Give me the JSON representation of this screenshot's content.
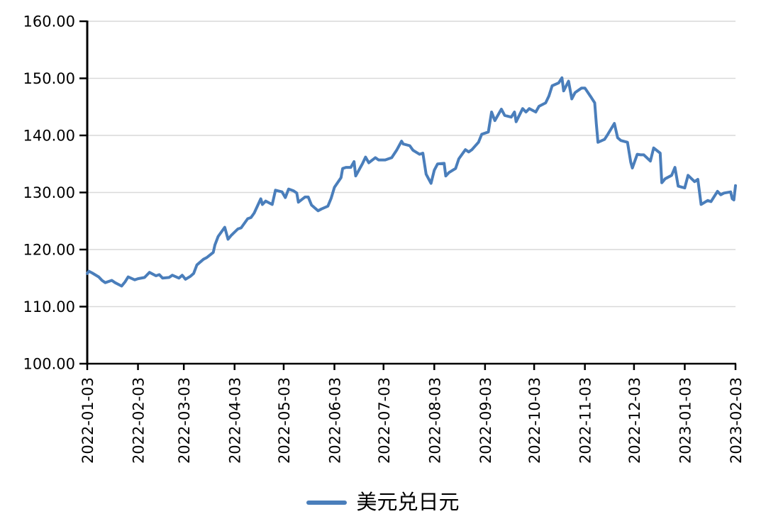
{
  "chart_data": {
    "type": "line",
    "title": "",
    "xlabel": "",
    "ylabel": "",
    "ylim": [
      100,
      160
    ],
    "y_ticks": [
      100,
      110,
      120,
      130,
      140,
      150,
      160
    ],
    "y_tick_format": "2-decimals",
    "x_ticks": [
      "2022-01-03",
      "2022-02-03",
      "2022-03-03",
      "2022-04-03",
      "2022-05-03",
      "2022-06-03",
      "2022-07-03",
      "2022-08-03",
      "2022-09-03",
      "2022-10-03",
      "2022-11-03",
      "2022-12-03",
      "2023-01-03",
      "2023-02-03"
    ],
    "x_tick_rotation": 90,
    "grid": "horizontal",
    "legend_position": "bottom",
    "colors": {
      "line": "#4A7EBB",
      "grid": "#D9D9D9",
      "axis": "#000000",
      "text": "#000000",
      "background": "#FFFFFF"
    },
    "series": [
      {
        "name": "美元兑日元",
        "color": "#4A7EBB",
        "points": [
          [
            "2022-01-03",
            115.8
          ],
          [
            "2022-01-04",
            116.2
          ],
          [
            "2022-01-06",
            115.9
          ],
          [
            "2022-01-10",
            115.2
          ],
          [
            "2022-01-12",
            114.6
          ],
          [
            "2022-01-14",
            114.2
          ],
          [
            "2022-01-18",
            114.6
          ],
          [
            "2022-01-20",
            114.2
          ],
          [
            "2022-01-24",
            113.6
          ],
          [
            "2022-01-26",
            114.3
          ],
          [
            "2022-01-28",
            115.2
          ],
          [
            "2022-02-01",
            114.7
          ],
          [
            "2022-02-03",
            114.9
          ],
          [
            "2022-02-07",
            115.1
          ],
          [
            "2022-02-10",
            116.0
          ],
          [
            "2022-02-14",
            115.4
          ],
          [
            "2022-02-16",
            115.6
          ],
          [
            "2022-02-18",
            115.0
          ],
          [
            "2022-02-22",
            115.1
          ],
          [
            "2022-02-24",
            115.5
          ],
          [
            "2022-02-28",
            115.0
          ],
          [
            "2022-03-02",
            115.5
          ],
          [
            "2022-03-04",
            114.8
          ],
          [
            "2022-03-07",
            115.3
          ],
          [
            "2022-03-09",
            115.8
          ],
          [
            "2022-03-11",
            117.3
          ],
          [
            "2022-03-15",
            118.3
          ],
          [
            "2022-03-17",
            118.6
          ],
          [
            "2022-03-21",
            119.5
          ],
          [
            "2022-03-22",
            120.8
          ],
          [
            "2022-03-24",
            122.3
          ],
          [
            "2022-03-28",
            123.9
          ],
          [
            "2022-03-30",
            121.8
          ],
          [
            "2022-04-01",
            122.5
          ],
          [
            "2022-04-05",
            123.6
          ],
          [
            "2022-04-07",
            123.8
          ],
          [
            "2022-04-11",
            125.4
          ],
          [
            "2022-04-13",
            125.6
          ],
          [
            "2022-04-15",
            126.4
          ],
          [
            "2022-04-19",
            128.9
          ],
          [
            "2022-04-20",
            127.9
          ],
          [
            "2022-04-22",
            128.5
          ],
          [
            "2022-04-26",
            127.9
          ],
          [
            "2022-04-28",
            130.4
          ],
          [
            "2022-05-02",
            130.1
          ],
          [
            "2022-05-04",
            129.1
          ],
          [
            "2022-05-06",
            130.6
          ],
          [
            "2022-05-09",
            130.3
          ],
          [
            "2022-05-11",
            129.9
          ],
          [
            "2022-05-12",
            128.3
          ],
          [
            "2022-05-16",
            129.2
          ],
          [
            "2022-05-18",
            129.2
          ],
          [
            "2022-05-20",
            127.8
          ],
          [
            "2022-05-24",
            126.8
          ],
          [
            "2022-05-26",
            127.1
          ],
          [
            "2022-05-30",
            127.6
          ],
          [
            "2022-06-01",
            129.0
          ],
          [
            "2022-06-03",
            130.9
          ],
          [
            "2022-06-07",
            132.6
          ],
          [
            "2022-06-08",
            134.2
          ],
          [
            "2022-06-10",
            134.4
          ],
          [
            "2022-06-13",
            134.4
          ],
          [
            "2022-06-15",
            135.4
          ],
          [
            "2022-06-16",
            132.9
          ],
          [
            "2022-06-20",
            135.0
          ],
          [
            "2022-06-22",
            136.2
          ],
          [
            "2022-06-24",
            135.2
          ],
          [
            "2022-06-28",
            136.1
          ],
          [
            "2022-06-30",
            135.7
          ],
          [
            "2022-07-04",
            135.7
          ],
          [
            "2022-07-06",
            135.9
          ],
          [
            "2022-07-08",
            136.1
          ],
          [
            "2022-07-11",
            137.4
          ],
          [
            "2022-07-14",
            139.0
          ],
          [
            "2022-07-15",
            138.5
          ],
          [
            "2022-07-19",
            138.2
          ],
          [
            "2022-07-21",
            137.4
          ],
          [
            "2022-07-25",
            136.7
          ],
          [
            "2022-07-27",
            136.9
          ],
          [
            "2022-07-29",
            133.2
          ],
          [
            "2022-08-01",
            131.6
          ],
          [
            "2022-08-03",
            133.9
          ],
          [
            "2022-08-05",
            135.0
          ],
          [
            "2022-08-09",
            135.1
          ],
          [
            "2022-08-10",
            132.9
          ],
          [
            "2022-08-12",
            133.5
          ],
          [
            "2022-08-16",
            134.2
          ],
          [
            "2022-08-18",
            135.9
          ],
          [
            "2022-08-22",
            137.5
          ],
          [
            "2022-08-24",
            137.1
          ],
          [
            "2022-08-26",
            137.5
          ],
          [
            "2022-08-30",
            138.8
          ],
          [
            "2022-09-01",
            140.2
          ],
          [
            "2022-09-05",
            140.6
          ],
          [
            "2022-09-07",
            144.1
          ],
          [
            "2022-09-09",
            142.6
          ],
          [
            "2022-09-13",
            144.6
          ],
          [
            "2022-09-15",
            143.5
          ],
          [
            "2022-09-19",
            143.2
          ],
          [
            "2022-09-21",
            144.1
          ],
          [
            "2022-09-22",
            142.4
          ],
          [
            "2022-09-26",
            144.7
          ],
          [
            "2022-09-28",
            144.1
          ],
          [
            "2022-09-30",
            144.7
          ],
          [
            "2022-10-04",
            144.1
          ],
          [
            "2022-10-06",
            145.1
          ],
          [
            "2022-10-10",
            145.7
          ],
          [
            "2022-10-12",
            146.9
          ],
          [
            "2022-10-14",
            148.7
          ],
          [
            "2022-10-18",
            149.2
          ],
          [
            "2022-10-20",
            150.1
          ],
          [
            "2022-10-21",
            147.8
          ],
          [
            "2022-10-24",
            149.5
          ],
          [
            "2022-10-26",
            146.4
          ],
          [
            "2022-10-28",
            147.5
          ],
          [
            "2022-11-01",
            148.3
          ],
          [
            "2022-11-03",
            148.3
          ],
          [
            "2022-11-07",
            146.6
          ],
          [
            "2022-11-09",
            145.7
          ],
          [
            "2022-11-10",
            142.0
          ],
          [
            "2022-11-11",
            138.8
          ],
          [
            "2022-11-15",
            139.3
          ],
          [
            "2022-11-17",
            140.2
          ],
          [
            "2022-11-21",
            142.1
          ],
          [
            "2022-11-23",
            139.6
          ],
          [
            "2022-11-25",
            139.1
          ],
          [
            "2022-11-29",
            138.8
          ],
          [
            "2022-12-01",
            135.3
          ],
          [
            "2022-12-02",
            134.3
          ],
          [
            "2022-12-05",
            136.7
          ],
          [
            "2022-12-07",
            136.6
          ],
          [
            "2022-12-09",
            136.6
          ],
          [
            "2022-12-13",
            135.5
          ],
          [
            "2022-12-15",
            137.8
          ],
          [
            "2022-12-19",
            136.9
          ],
          [
            "2022-12-20",
            131.7
          ],
          [
            "2022-12-22",
            132.4
          ],
          [
            "2022-12-26",
            133.0
          ],
          [
            "2022-12-28",
            134.4
          ],
          [
            "2022-12-30",
            131.1
          ],
          [
            "2023-01-03",
            130.8
          ],
          [
            "2023-01-05",
            133.0
          ],
          [
            "2023-01-09",
            131.9
          ],
          [
            "2023-01-11",
            132.3
          ],
          [
            "2023-01-13",
            127.9
          ],
          [
            "2023-01-17",
            128.6
          ],
          [
            "2023-01-19",
            128.4
          ],
          [
            "2023-01-23",
            130.2
          ],
          [
            "2023-01-25",
            129.6
          ],
          [
            "2023-01-27",
            129.9
          ],
          [
            "2023-01-31",
            130.1
          ],
          [
            "2023-02-01",
            128.9
          ],
          [
            "2023-02-02",
            128.7
          ],
          [
            "2023-02-03",
            131.2
          ]
        ]
      }
    ]
  },
  "legend": {
    "label": "美元兑日元"
  }
}
